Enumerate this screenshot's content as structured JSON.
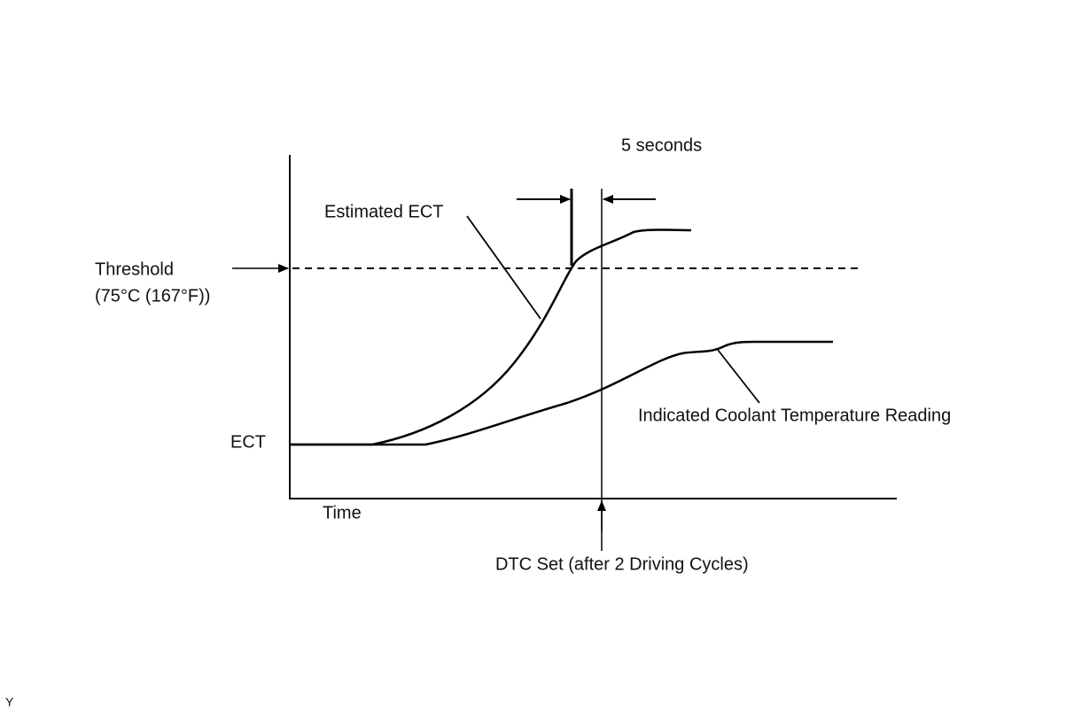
{
  "labels": {
    "five_seconds": "5 seconds",
    "estimated_ect": "Estimated ECT",
    "threshold": "Threshold",
    "threshold_value": "(75°C (167°F))",
    "ect": "ECT",
    "time": "Time",
    "indicated": "Indicated Coolant Temperature Reading",
    "dtc_set": "DTC Set (after 2 Driving Cycles)",
    "corner_mark": "Y"
  }
}
